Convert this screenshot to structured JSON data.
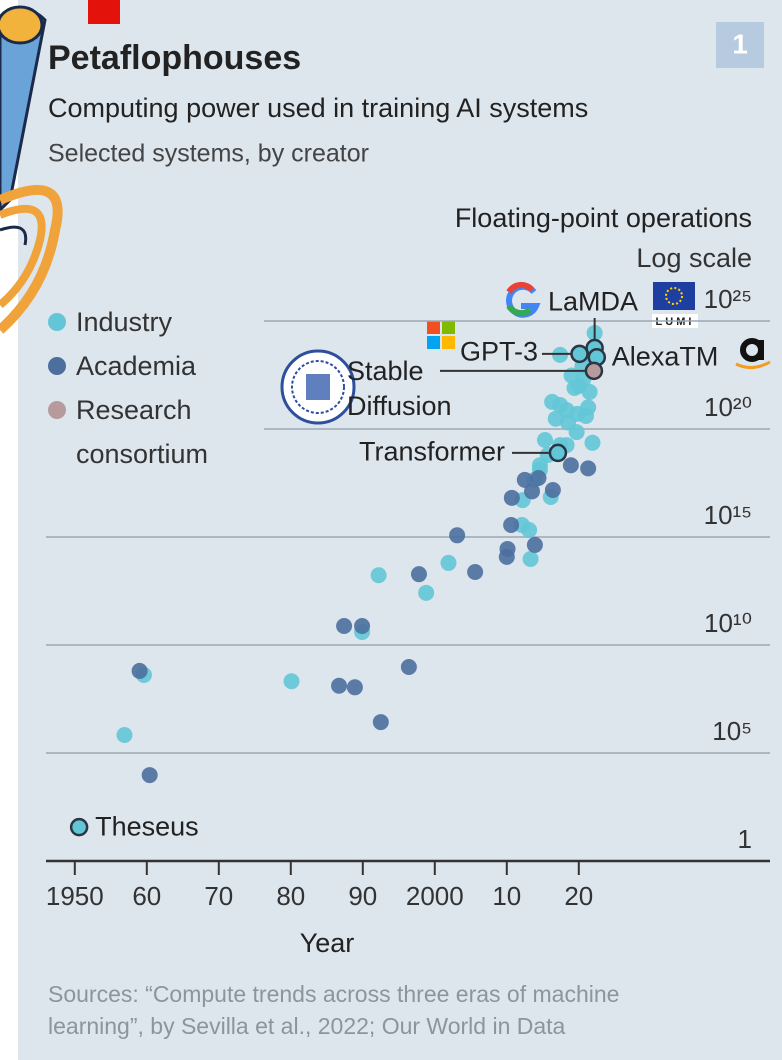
{
  "page_number": "1",
  "logo_text": "LUMI",
  "chart_data": {
    "type": "scatter",
    "title": "Petaflophouses",
    "subtitle": "Computing power used in training AI systems",
    "note": "Selected systems, by creator",
    "y_label": "Floating-point operations",
    "scale_note": "Log scale",
    "x_label": "Year",
    "source": "Sources: “Compute trends across three eras of machine learning”, by Sevilla et al., 2022; Our World in Data",
    "log_scale": true,
    "grid": true,
    "xlim": [
      1946,
      2048
    ],
    "xticks": [
      1950,
      {
        "value": 1960,
        "label": "60"
      },
      {
        "value": 1970,
        "label": "70"
      },
      {
        "value": 1980,
        "label": "80"
      },
      {
        "value": 1990,
        "label": "90"
      },
      2000,
      {
        "value": 2010,
        "label": "10"
      },
      {
        "value": 2020,
        "label": "20"
      }
    ],
    "ylim": [
      1,
      1e+27
    ],
    "yticks": [
      1,
      {
        "value": 100000.0,
        "label": "10⁵"
      },
      {
        "value": 10000000000.0,
        "label": "10¹⁰"
      },
      {
        "value": 1000000000000000.0,
        "label": "10¹⁵"
      },
      {
        "value": 1e+20,
        "label": "10²⁰"
      },
      {
        "value": 1e+25,
        "label": "10²⁵"
      }
    ],
    "series": [
      {
        "name": "Industry",
        "color": "#62c6d6",
        "x": [
          1950.6,
          2020.1,
          2022.2,
          2022.5,
          2017.1,
          1956.9,
          1959.6,
          1980.1,
          1989.9,
          1992.2,
          1998.8,
          2001.9,
          2012.1,
          2013.1,
          2013.3,
          2013.8,
          2012.2,
          2016.1,
          2014.6,
          2015.3,
          2017.4,
          2019.7,
          2018.3,
          2016.3,
          2017.4,
          2019.4,
          2020.6,
          2021.5,
          2022.2,
          2017.4,
          2021.9,
          2018.3,
          2014.6,
          2015.7,
          2019,
          2020,
          2021,
          2018.5,
          2020.5,
          2022,
          2019.8,
          2016.8,
          2021.3
        ],
        "values": [
          37.0,
          3e+23,
          5.6e+23,
          2.1e+23,
          7.8e+18,
          680000.0,
          410000000.0,
          210000000.0,
          40000000000.0,
          17000000000000.0,
          2600000000000.0,
          63000000000000.0,
          3600000000000000.0,
          2100000000000000.0,
          96000000000000.0,
          4.4e+17,
          5.1e+16,
          7.1e+16,
          2.1e+18,
          3.1e+19,
          1.8e+19,
          7.2e+19,
          7.6e+20,
          1.8e+21,
          1.3e+21,
          7.9e+21,
          1.9e+22,
          5.2e+21,
          2.8e+24,
          2.7e+23,
          2.3e+19,
          1.8e+19,
          1.3e+18,
          6.3e+18,
          3e+22,
          1e+22,
          4e+20,
          2e+20,
          8e+22,
          1e+23,
          5e+20,
          3e+20,
          1e+21
        ],
        "labels": [
          "Theseus",
          "GPT-3",
          "LaMDA",
          "AlexaTM",
          "Transformer",
          null,
          null,
          null,
          null,
          null,
          null,
          null,
          null,
          null,
          null,
          null,
          null,
          null,
          null,
          null,
          null,
          null,
          null,
          null,
          null,
          null,
          null,
          null,
          null,
          null,
          null,
          null,
          null,
          null,
          null,
          null,
          null,
          null,
          null,
          null,
          null,
          null,
          null
        ]
      },
      {
        "name": "Academia",
        "color": "#4d6f9e",
        "x": [
          1960.4,
          1959.0,
          1986.7,
          1988.9,
          1987.4,
          1989.9,
          1992.5,
          1996.4,
          1997.8,
          2003.1,
          2005.6,
          2010.1,
          2010.0,
          2010.6,
          2010.7,
          2013.9,
          2012.5,
          2013.5,
          2014.4,
          2016.4,
          2018.9,
          2021.3
        ],
        "values": [
          9500.0,
          630000000.0,
          130000000.0,
          110000000.0,
          76000000000.0,
          76000000000.0,
          2700000.0,
          960000000.0,
          19000000000000.0,
          1200000000000000.0,
          24000000000000.0,
          280000000000000.0,
          120000000000000.0,
          3600000000000000.0,
          6.5e+16,
          430000000000000.0,
          4.4e+17,
          1.3e+17,
          5.4e+17,
          1.5e+17,
          2.1e+18,
          1.5e+18
        ]
      },
      {
        "name": "Research consortium",
        "color": "#b79a9c",
        "x": [
          2022.1
        ],
        "values": [
          4.9e+22
        ],
        "labels": [
          "Stable Diffusion"
        ]
      }
    ]
  }
}
